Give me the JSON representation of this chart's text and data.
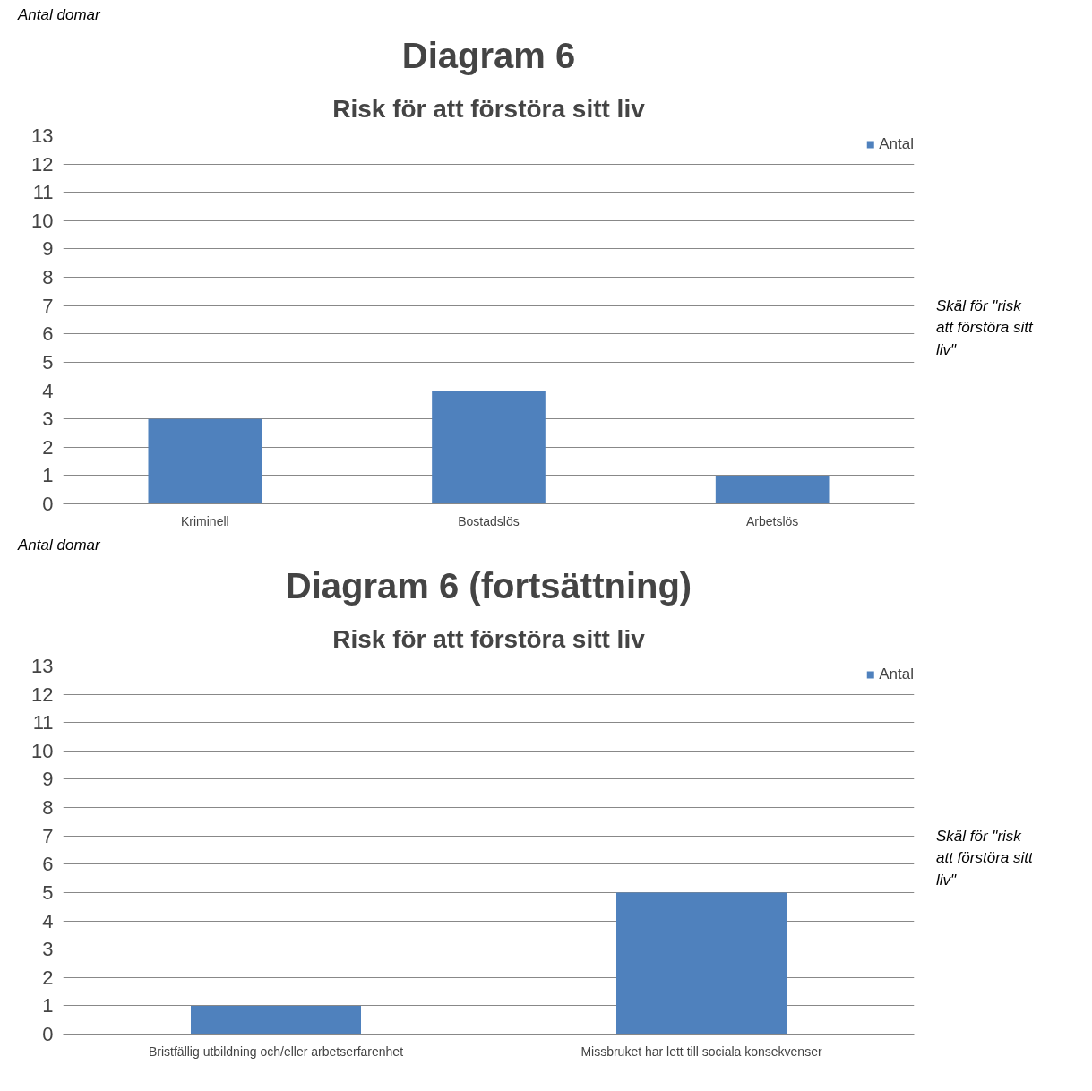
{
  "chart_data": [
    {
      "type": "bar",
      "title": "Diagram 6",
      "subtitle": "Risk för att förstöra sitt liv",
      "ylabel": "Antal domar",
      "xlabel": "Skäl för \"risk att förstöra sitt liv\"",
      "categories": [
        "Kriminell",
        "Bostadslös",
        "Arbetslös"
      ],
      "series": [
        {
          "name": "Antal",
          "color": "#4f81bd",
          "values": [
            3,
            4,
            1
          ]
        }
      ],
      "ylim": [
        0,
        13
      ],
      "yticks": [
        0,
        1,
        2,
        3,
        4,
        5,
        6,
        7,
        8,
        9,
        10,
        11,
        12,
        13
      ],
      "grid": "y",
      "legend": "right"
    },
    {
      "type": "bar",
      "title": "Diagram 6 (fortsättning)",
      "subtitle": "Risk för att förstöra sitt liv",
      "ylabel": "Antal domar",
      "xlabel": "Skäl för \"risk att förstöra sitt liv\"",
      "categories": [
        "Bristfällig utbildning och/eller arbetserfarenhet",
        "Missbruket har lett till sociala konsekvenser"
      ],
      "series": [
        {
          "name": "Antal",
          "color": "#4f81bd",
          "values": [
            1,
            5
          ]
        }
      ],
      "ylim": [
        0,
        13
      ],
      "yticks": [
        0,
        1,
        2,
        3,
        4,
        5,
        6,
        7,
        8,
        9,
        10,
        11,
        12,
        13
      ],
      "grid": "y",
      "legend": "right"
    }
  ]
}
